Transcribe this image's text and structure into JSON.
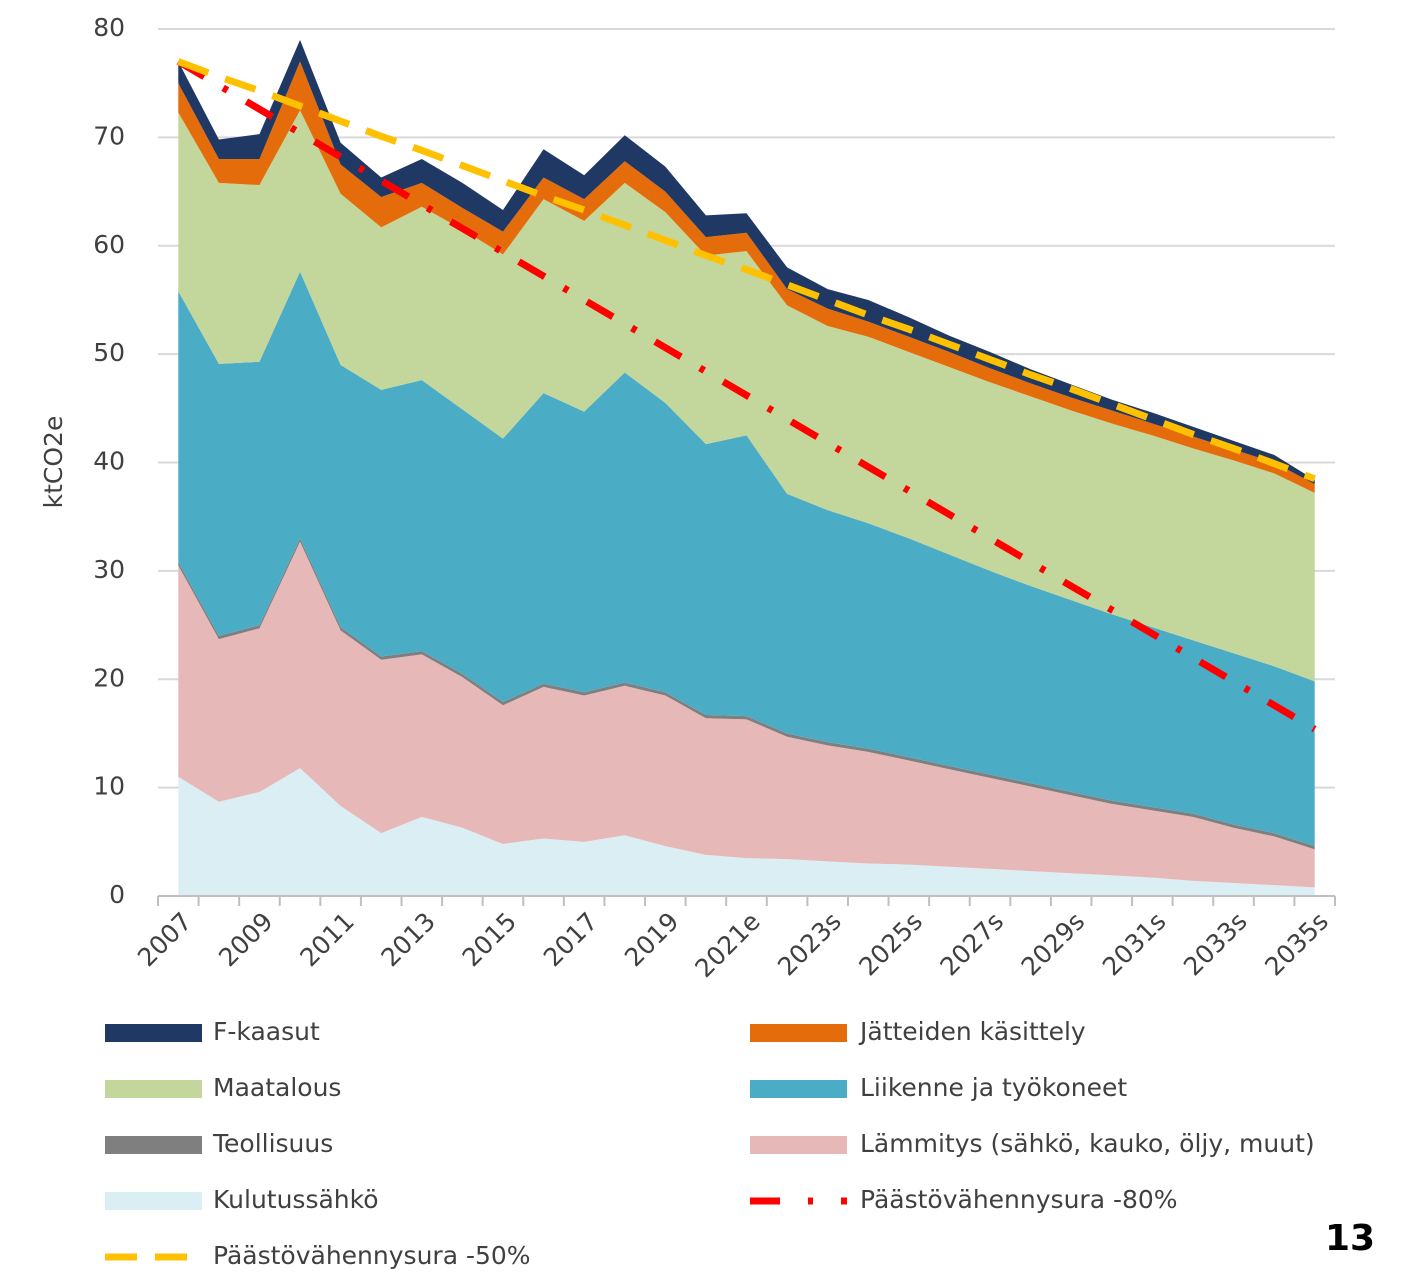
{
  "chart_data": {
    "type": "stacked-area",
    "y_label": "ktCO2e",
    "annotation": "13",
    "categories": [
      "2007",
      null,
      "2009",
      null,
      "2011",
      null,
      "2013",
      null,
      "2015",
      null,
      "2017",
      null,
      "2019",
      null,
      "2021e",
      null,
      "2023s",
      null,
      "2025s",
      null,
      "2027s",
      null,
      "2029s",
      null,
      "2031s",
      null,
      "2033s",
      null,
      "2035s"
    ],
    "ylim": [
      0,
      80
    ],
    "yticks": [
      0,
      10,
      20,
      30,
      40,
      50,
      60,
      70,
      80
    ],
    "grid": true,
    "series": [
      {
        "name": "F-kaasut",
        "color": "#1f3864",
        "values": [
          2.0,
          1.8,
          2.3,
          2.0,
          2.0,
          1.8,
          2.2,
          2.3,
          2.0,
          2.6,
          2.2,
          2.4,
          2.3,
          2.0,
          1.8,
          2.0,
          1.8,
          2.0,
          1.8,
          1.5,
          1.5,
          1.3,
          1.2,
          1.0,
          1.0,
          0.9,
          0.8,
          0.7,
          0.4
        ]
      },
      {
        "name": "Jätteiden käsittely",
        "color": "#e46c0a",
        "values": [
          2.7,
          2.2,
          2.4,
          4.5,
          2.7,
          2.8,
          2.2,
          2.0,
          2.1,
          2.0,
          2.0,
          2.0,
          1.9,
          1.7,
          1.7,
          1.5,
          1.6,
          1.4,
          1.4,
          1.4,
          1.3,
          1.2,
          1.2,
          1.2,
          1.1,
          1.1,
          1.0,
          1.0,
          0.8
        ]
      },
      {
        "name": "Maatalous",
        "color": "#c3d69b",
        "values": [
          16.5,
          16.7,
          16.3,
          14.9,
          15.8,
          15.0,
          16.0,
          16.6,
          17.0,
          17.9,
          17.6,
          17.5,
          17.6,
          17.4,
          17.0,
          17.4,
          17.0,
          17.2,
          17.2,
          17.3,
          17.4,
          17.5,
          17.5,
          17.6,
          17.7,
          17.7,
          17.8,
          17.8,
          17.4
        ]
      },
      {
        "name": "Liikenne ja työkoneet",
        "color": "#4bacc6",
        "values": [
          25.0,
          25.1,
          24.3,
          24.6,
          24.2,
          24.6,
          25.0,
          24.4,
          24.3,
          26.8,
          25.9,
          28.6,
          26.7,
          25.0,
          25.9,
          22.1,
          21.4,
          20.8,
          20.2,
          19.5,
          18.8,
          18.2,
          17.7,
          17.2,
          16.6,
          16.0,
          15.8,
          15.4,
          15.2
        ]
      },
      {
        "name": "Teollisuus",
        "color": "#7f7f7f",
        "values": [
          0.3,
          0.3,
          0.3,
          0.3,
          0.3,
          0.3,
          0.3,
          0.3,
          0.3,
          0.3,
          0.3,
          0.3,
          0.3,
          0.3,
          0.3,
          0.3,
          0.3,
          0.3,
          0.3,
          0.3,
          0.3,
          0.3,
          0.3,
          0.3,
          0.3,
          0.3,
          0.3,
          0.3,
          0.3
        ]
      },
      {
        "name": "Lämmitys (sähkö, kauko, öljy, muut)",
        "color": "#e6b9b8",
        "values": [
          19.5,
          15.0,
          15.1,
          20.9,
          16.2,
          16.0,
          15.0,
          13.9,
          12.8,
          14.0,
          13.5,
          13.8,
          13.9,
          12.6,
          12.8,
          11.3,
          10.7,
          10.3,
          9.6,
          9.0,
          8.4,
          7.8,
          7.2,
          6.6,
          6.2,
          5.9,
          5.1,
          4.5,
          3.5
        ]
      },
      {
        "name": "Kulutussähkö",
        "color": "#dbeef4",
        "values": [
          11,
          8.7,
          9.6,
          11.8,
          8.3,
          5.8,
          7.3,
          6.3,
          4.8,
          5.3,
          5.0,
          5.6,
          4.6,
          3.8,
          3.5,
          3.4,
          3.2,
          3.0,
          2.9,
          2.7,
          2.5,
          2.3,
          2.1,
          1.9,
          1.7,
          1.4,
          1.2,
          1.0,
          0.8
        ]
      },
      {
        "name": "Päästövähennysura -80%",
        "color": "#ff0000",
        "type": "line",
        "style": "dash-dot",
        "values": [
          77,
          74.8,
          72.6,
          70.4,
          68.2,
          66,
          63.8,
          61.6,
          59.4,
          57.2,
          55,
          52.8,
          50.6,
          48.4,
          46.2,
          44,
          41.8,
          39.6,
          37.4,
          35.2,
          33,
          30.8,
          28.6,
          26.4,
          24.2,
          22,
          19.8,
          17.6,
          15.4
        ]
      },
      {
        "name": "Päästövähennysura -50%",
        "color": "#ffc000",
        "type": "line",
        "style": "dashed",
        "values": [
          77,
          75.6,
          74.3,
          72.9,
          71.5,
          70.1,
          68.8,
          67.4,
          66,
          64.6,
          63.3,
          61.9,
          60.5,
          59.1,
          57.8,
          56.4,
          55,
          53.6,
          52.3,
          50.9,
          49.5,
          48.1,
          46.8,
          45.4,
          44,
          42.6,
          41.3,
          39.9,
          38.5
        ]
      }
    ]
  }
}
